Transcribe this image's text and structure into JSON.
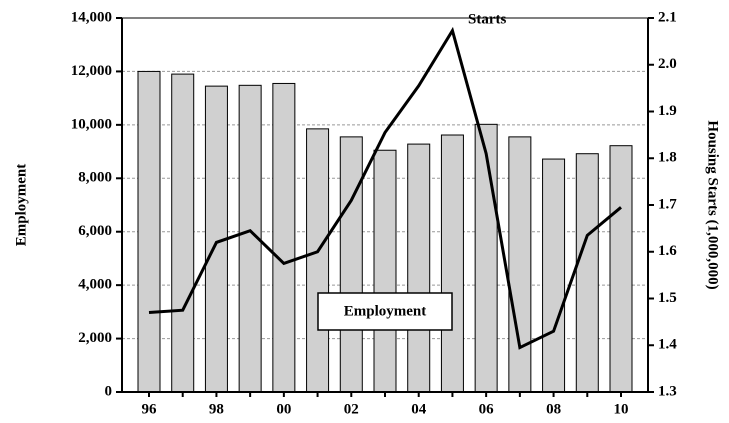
{
  "chart_data": {
    "type": "bar-line",
    "categories": [
      "96",
      null,
      "98",
      null,
      "00",
      null,
      "02",
      null,
      "04",
      null,
      "06",
      null,
      "08",
      null,
      "10"
    ],
    "series": [
      {
        "name": "Employment",
        "type": "bar",
        "color": "#d0d0d0",
        "values": [
          12000,
          11900,
          11450,
          11480,
          11550,
          9850,
          9550,
          9050,
          9280,
          9620,
          10020,
          9550,
          8720,
          8920,
          9220
        ]
      },
      {
        "name": "Starts",
        "type": "line",
        "axis": "y2",
        "color": "#000000",
        "values": [
          1.47,
          1.475,
          1.62,
          1.645,
          1.575,
          1.6,
          1.71,
          1.855,
          1.955,
          2.073,
          1.81,
          1.395,
          1.43,
          1.635,
          1.695
        ]
      }
    ],
    "ylabel": "Employment",
    "y2label": "Housing Starts (1,000,000)",
    "ylim": [
      0,
      14000
    ],
    "yticks": [
      0,
      {
        "value": 2000,
        "label": "2,000"
      },
      {
        "value": 4000,
        "label": "4,000"
      },
      {
        "value": 6000,
        "label": "6,000"
      },
      {
        "value": 8000,
        "label": "8,000"
      },
      {
        "value": 10000,
        "label": "10,000"
      },
      {
        "value": 12000,
        "label": "12,000"
      },
      {
        "value": 14000,
        "label": "14,000"
      }
    ],
    "y2lim": [
      1.3,
      2.1
    ],
    "y2ticks": [
      1.3,
      1.4,
      1.5,
      1.6,
      1.7,
      1.8,
      1.9,
      {
        "value": 2,
        "label": "2.0"
      },
      2.1
    ],
    "grid": true
  }
}
